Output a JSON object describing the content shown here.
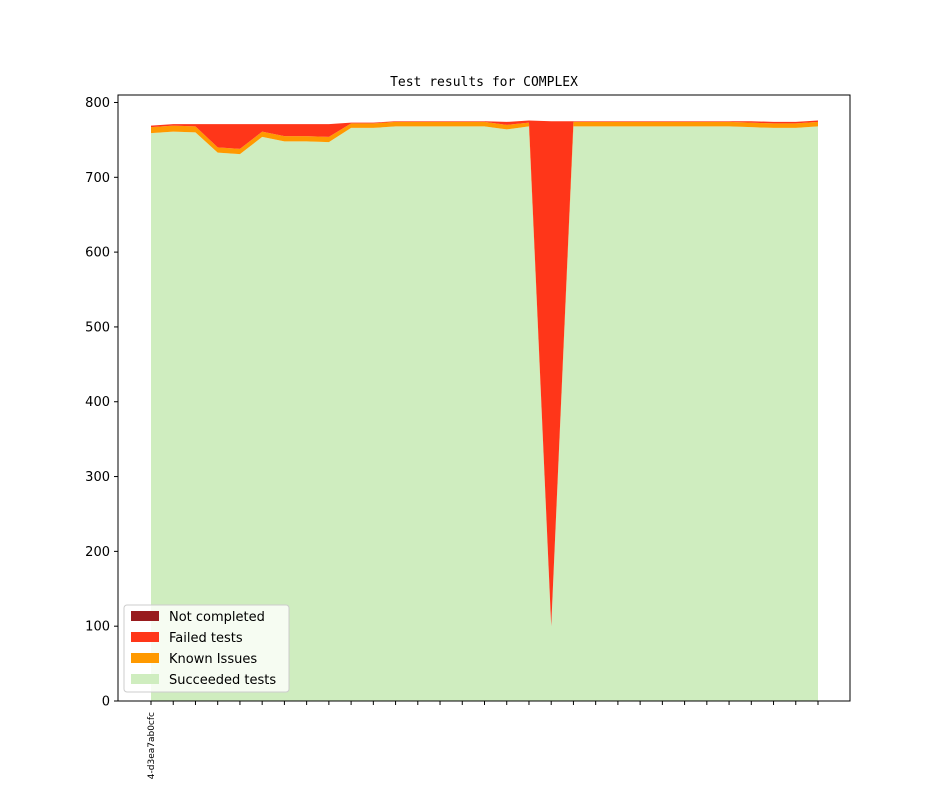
{
  "chart_data": {
    "type": "area",
    "stacked": true,
    "title": "Test results for COMPLEX",
    "xlabel": "",
    "ylabel": "",
    "ylim": [
      0,
      810
    ],
    "yticks": [
      0,
      100,
      200,
      300,
      400,
      500,
      600,
      700,
      800
    ],
    "xtick_label": "4-d3ea7ab0cfc",
    "x": [
      0,
      1,
      2,
      3,
      4,
      5,
      6,
      7,
      8,
      9,
      10,
      11,
      12,
      13,
      14,
      15,
      16,
      17,
      18,
      19,
      20,
      21,
      22,
      23,
      24,
      25,
      26,
      27,
      28,
      29,
      30
    ],
    "legend_position": "lower-left",
    "grid": false,
    "series": [
      {
        "name": "Succeeded tests",
        "color": "#cfedbf",
        "values": [
          759,
          761,
          760,
          733,
          731,
          754,
          748,
          748,
          747,
          766,
          766,
          768,
          768,
          768,
          768,
          768,
          764,
          768,
          100,
          768,
          768,
          768,
          768,
          768,
          768,
          768,
          768,
          767,
          766,
          766,
          768
        ]
      },
      {
        "name": "Known Issues",
        "color": "#ff9900",
        "values": [
          8,
          8,
          8,
          7,
          7,
          7,
          7,
          7,
          7,
          6,
          6,
          6,
          6,
          6,
          6,
          6,
          6,
          5,
          0,
          6,
          6,
          6,
          6,
          6,
          6,
          6,
          6,
          6,
          6,
          6,
          6
        ]
      },
      {
        "name": "Failed tests",
        "color": "#ff3619",
        "values": [
          2,
          2,
          3,
          31,
          33,
          10,
          16,
          16,
          17,
          1,
          1,
          1,
          1,
          1,
          1,
          1,
          4,
          3,
          675,
          1,
          1,
          1,
          1,
          1,
          1,
          1,
          1,
          2,
          2,
          2,
          2
        ]
      },
      {
        "name": "Not completed",
        "color": "#981b1e",
        "values": [
          0,
          0,
          0,
          0,
          0,
          0,
          0,
          0,
          0,
          0,
          0,
          0,
          0,
          0,
          0,
          0,
          0,
          0,
          0,
          0,
          0,
          0,
          0,
          0,
          0,
          0,
          0,
          0,
          0,
          0,
          0
        ]
      }
    ],
    "legend_order": [
      "Not completed",
      "Failed tests",
      "Known Issues",
      "Succeeded tests"
    ]
  }
}
